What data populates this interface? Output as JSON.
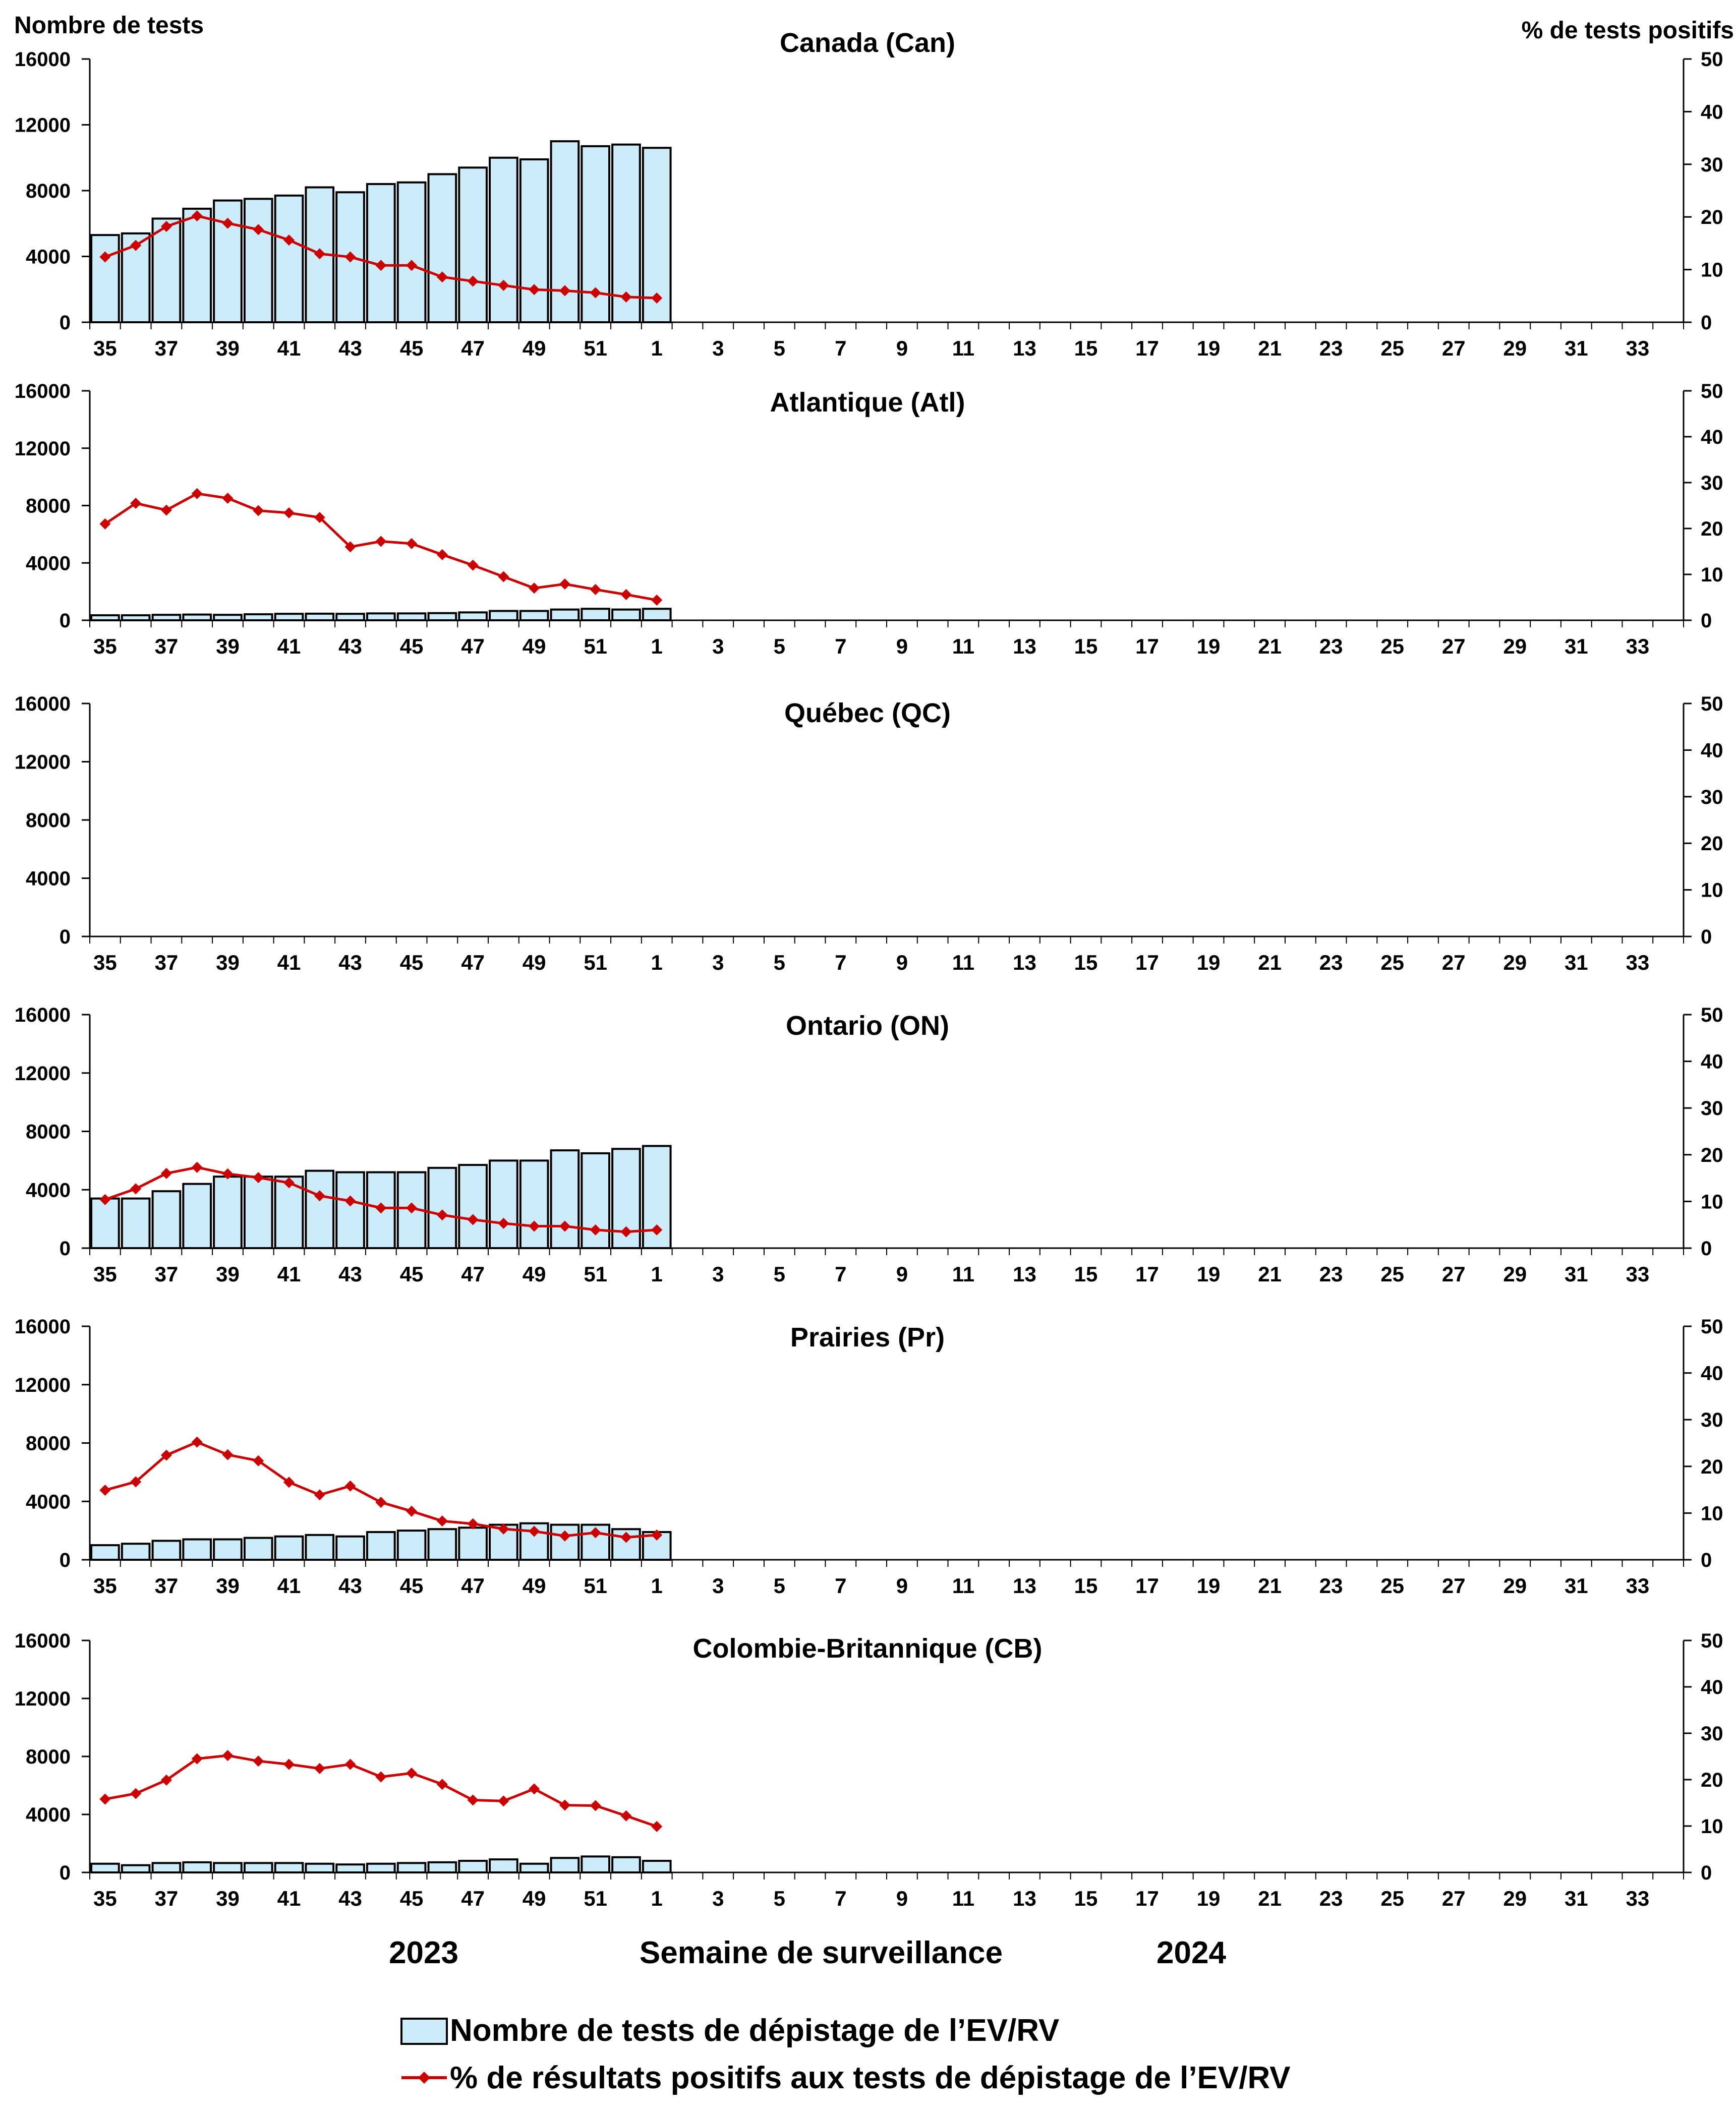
{
  "yaxis_left_label": "Nombre de tests",
  "yaxis_right_label": "% de tests positifs",
  "xaxis_label": "Semaine de surveillance",
  "year_labels": [
    "2023",
    "2024"
  ],
  "legend": {
    "bar_label": "Nombre de tests de dépistage de l’EV/RV",
    "line_label": "% de résultats positifs aux tests de dépistage de l’EV/RV"
  },
  "colors": {
    "bar_fill": "#CCECFA",
    "bar_stroke": "#000000",
    "line": "#CC0000"
  },
  "chart_data": [
    {
      "type": "bar+line",
      "title": "Canada (Can)",
      "weeks": [
        35,
        36,
        37,
        38,
        39,
        40,
        41,
        42,
        43,
        44,
        45,
        46,
        47,
        48,
        49,
        50,
        51,
        52,
        1,
        2,
        3,
        4,
        5,
        6,
        7,
        8,
        9,
        10,
        11,
        12,
        13,
        14,
        15,
        16,
        17,
        18,
        19,
        20,
        21,
        22,
        23,
        24,
        25,
        26,
        27,
        28,
        29,
        30,
        31,
        32,
        33,
        34
      ],
      "tick_labels": [
        "35",
        "37",
        "39",
        "41",
        "43",
        "45",
        "47",
        "49",
        "51",
        "1",
        "3",
        "5",
        "7",
        "9",
        "11",
        "13",
        "15",
        "17",
        "19",
        "21",
        "23",
        "25",
        "27",
        "29",
        "31",
        "33"
      ],
      "ylim_left": [
        0,
        16000
      ],
      "yticks_left": [
        "0",
        "4000",
        "8000",
        "12000",
        "16000"
      ],
      "ylim_right": [
        0,
        50
      ],
      "yticks_right": [
        "0",
        "10",
        "20",
        "30",
        "40",
        "50"
      ],
      "tests": [
        5300,
        5400,
        6300,
        6900,
        7400,
        7500,
        7700,
        8200,
        7900,
        8400,
        8500,
        9000,
        9400,
        10000,
        9900,
        11000,
        10700,
        10800,
        10600
      ],
      "pct_positive": [
        12.4,
        14.6,
        18.2,
        20.2,
        18.8,
        17.6,
        15.6,
        13.0,
        12.4,
        10.8,
        10.8,
        8.6,
        7.8,
        7.0,
        6.2,
        6.0,
        5.6,
        4.8,
        4.6
      ]
    },
    {
      "type": "bar+line",
      "title": "Atlantique (Atl)",
      "weeks": [
        35,
        36,
        37,
        38,
        39,
        40,
        41,
        42,
        43,
        44,
        45,
        46,
        47,
        48,
        49,
        50,
        51,
        52,
        1,
        2,
        3,
        4,
        5,
        6,
        7,
        8,
        9,
        10,
        11,
        12,
        13,
        14,
        15,
        16,
        17,
        18,
        19,
        20,
        21,
        22,
        23,
        24,
        25,
        26,
        27,
        28,
        29,
        30,
        31,
        32,
        33,
        34
      ],
      "tick_labels": [
        "35",
        "37",
        "39",
        "41",
        "43",
        "45",
        "47",
        "49",
        "51",
        "1",
        "3",
        "5",
        "7",
        "9",
        "11",
        "13",
        "15",
        "17",
        "19",
        "21",
        "23",
        "25",
        "27",
        "29",
        "31",
        "33"
      ],
      "ylim_left": [
        0,
        16000
      ],
      "yticks_left": [
        "0",
        "4000",
        "8000",
        "12000",
        "16000"
      ],
      "ylim_right": [
        0,
        50
      ],
      "yticks_right": [
        "0",
        "10",
        "20",
        "30",
        "40",
        "50"
      ],
      "tests": [
        350,
        350,
        380,
        400,
        380,
        420,
        450,
        460,
        450,
        480,
        480,
        500,
        550,
        650,
        650,
        750,
        800,
        750,
        800
      ],
      "pct_positive": [
        21.0,
        25.5,
        24.0,
        27.6,
        26.6,
        23.9,
        23.4,
        22.4,
        16.0,
        17.2,
        16.7,
        14.3,
        12.0,
        9.5,
        7.0,
        7.9,
        6.7,
        5.6,
        4.4
      ]
    },
    {
      "type": "bar+line",
      "title": "Québec (QC)",
      "weeks": [
        35,
        36,
        37,
        38,
        39,
        40,
        41,
        42,
        43,
        44,
        45,
        46,
        47,
        48,
        49,
        50,
        51,
        52,
        1,
        2,
        3,
        4,
        5,
        6,
        7,
        8,
        9,
        10,
        11,
        12,
        13,
        14,
        15,
        16,
        17,
        18,
        19,
        20,
        21,
        22,
        23,
        24,
        25,
        26,
        27,
        28,
        29,
        30,
        31,
        32,
        33,
        34
      ],
      "tick_labels": [
        "35",
        "37",
        "39",
        "41",
        "43",
        "45",
        "47",
        "49",
        "51",
        "1",
        "3",
        "5",
        "7",
        "9",
        "11",
        "13",
        "15",
        "17",
        "19",
        "21",
        "23",
        "25",
        "27",
        "29",
        "31",
        "33"
      ],
      "ylim_left": [
        0,
        16000
      ],
      "yticks_left": [
        "0",
        "4000",
        "8000",
        "12000",
        "16000"
      ],
      "ylim_right": [
        0,
        50
      ],
      "yticks_right": [
        "0",
        "10",
        "20",
        "30",
        "40",
        "50"
      ],
      "tests": [],
      "pct_positive": []
    },
    {
      "type": "bar+line",
      "title": "Ontario (ON)",
      "weeks": [
        35,
        36,
        37,
        38,
        39,
        40,
        41,
        42,
        43,
        44,
        45,
        46,
        47,
        48,
        49,
        50,
        51,
        52,
        1,
        2,
        3,
        4,
        5,
        6,
        7,
        8,
        9,
        10,
        11,
        12,
        13,
        14,
        15,
        16,
        17,
        18,
        19,
        20,
        21,
        22,
        23,
        24,
        25,
        26,
        27,
        28,
        29,
        30,
        31,
        32,
        33,
        34
      ],
      "tick_labels": [
        "35",
        "37",
        "39",
        "41",
        "43",
        "45",
        "47",
        "49",
        "51",
        "1",
        "3",
        "5",
        "7",
        "9",
        "11",
        "13",
        "15",
        "17",
        "19",
        "21",
        "23",
        "25",
        "27",
        "29",
        "31",
        "33"
      ],
      "ylim_left": [
        0,
        16000
      ],
      "yticks_left": [
        "0",
        "4000",
        "8000",
        "12000",
        "16000"
      ],
      "ylim_right": [
        0,
        50
      ],
      "yticks_right": [
        "0",
        "10",
        "20",
        "30",
        "40",
        "50"
      ],
      "tests": [
        3400,
        3400,
        3900,
        4400,
        4900,
        4900,
        4900,
        5300,
        5200,
        5200,
        5200,
        5500,
        5700,
        6000,
        6000,
        6700,
        6500,
        6800,
        7000
      ],
      "pct_positive": [
        10.4,
        12.7,
        16.0,
        17.3,
        15.9,
        15.1,
        14.0,
        11.2,
        10.1,
        8.6,
        8.6,
        7.1,
        6.1,
        5.3,
        4.7,
        4.7,
        3.9,
        3.5,
        3.9
      ]
    },
    {
      "type": "bar+line",
      "title": "Prairies (Pr)",
      "weeks": [
        35,
        36,
        37,
        38,
        39,
        40,
        41,
        42,
        43,
        44,
        45,
        46,
        47,
        48,
        49,
        50,
        51,
        52,
        1,
        2,
        3,
        4,
        5,
        6,
        7,
        8,
        9,
        10,
        11,
        12,
        13,
        14,
        15,
        16,
        17,
        18,
        19,
        20,
        21,
        22,
        23,
        24,
        25,
        26,
        27,
        28,
        29,
        30,
        31,
        32,
        33,
        34
      ],
      "tick_labels": [
        "35",
        "37",
        "39",
        "41",
        "43",
        "45",
        "47",
        "49",
        "51",
        "1",
        "3",
        "5",
        "7",
        "9",
        "11",
        "13",
        "15",
        "17",
        "19",
        "21",
        "23",
        "25",
        "27",
        "29",
        "31",
        "33"
      ],
      "ylim_left": [
        0,
        16000
      ],
      "yticks_left": [
        "0",
        "4000",
        "8000",
        "12000",
        "16000"
      ],
      "ylim_right": [
        0,
        50
      ],
      "yticks_right": [
        "0",
        "10",
        "20",
        "30",
        "40",
        "50"
      ],
      "tests": [
        1000,
        1100,
        1300,
        1400,
        1400,
        1500,
        1600,
        1700,
        1600,
        1900,
        2000,
        2100,
        2200,
        2400,
        2500,
        2400,
        2400,
        2100,
        1900
      ],
      "pct_positive": [
        14.9,
        16.7,
        22.4,
        25.2,
        22.5,
        21.2,
        16.6,
        13.9,
        15.8,
        12.3,
        10.4,
        8.3,
        7.7,
        6.6,
        6.1,
        5.1,
        5.8,
        4.8,
        5.3
      ]
    },
    {
      "type": "bar+line",
      "title": "Colombie-Britannique (CB)",
      "weeks": [
        35,
        36,
        37,
        38,
        39,
        40,
        41,
        42,
        43,
        44,
        45,
        46,
        47,
        48,
        49,
        50,
        51,
        52,
        1,
        2,
        3,
        4,
        5,
        6,
        7,
        8,
        9,
        10,
        11,
        12,
        13,
        14,
        15,
        16,
        17,
        18,
        19,
        20,
        21,
        22,
        23,
        24,
        25,
        26,
        27,
        28,
        29,
        30,
        31,
        32,
        33,
        34
      ],
      "tick_labels": [
        "35",
        "37",
        "39",
        "41",
        "43",
        "45",
        "47",
        "49",
        "51",
        "1",
        "3",
        "5",
        "7",
        "9",
        "11",
        "13",
        "15",
        "17",
        "19",
        "21",
        "23",
        "25",
        "27",
        "29",
        "31",
        "33"
      ],
      "ylim_left": [
        0,
        16000
      ],
      "yticks_left": [
        "0",
        "4000",
        "8000",
        "12000",
        "16000"
      ],
      "ylim_right": [
        0,
        50
      ],
      "yticks_right": [
        "0",
        "10",
        "20",
        "30",
        "40",
        "50"
      ],
      "tests": [
        600,
        500,
        650,
        700,
        650,
        650,
        650,
        600,
        550,
        600,
        650,
        700,
        800,
        900,
        600,
        1000,
        1100,
        1050,
        800
      ],
      "pct_positive": [
        15.8,
        17.0,
        19.9,
        24.5,
        25.2,
        24.0,
        23.3,
        22.4,
        23.3,
        20.6,
        21.4,
        19.0,
        15.6,
        15.4,
        18.0,
        14.5,
        14.4,
        12.2,
        9.9
      ]
    }
  ]
}
